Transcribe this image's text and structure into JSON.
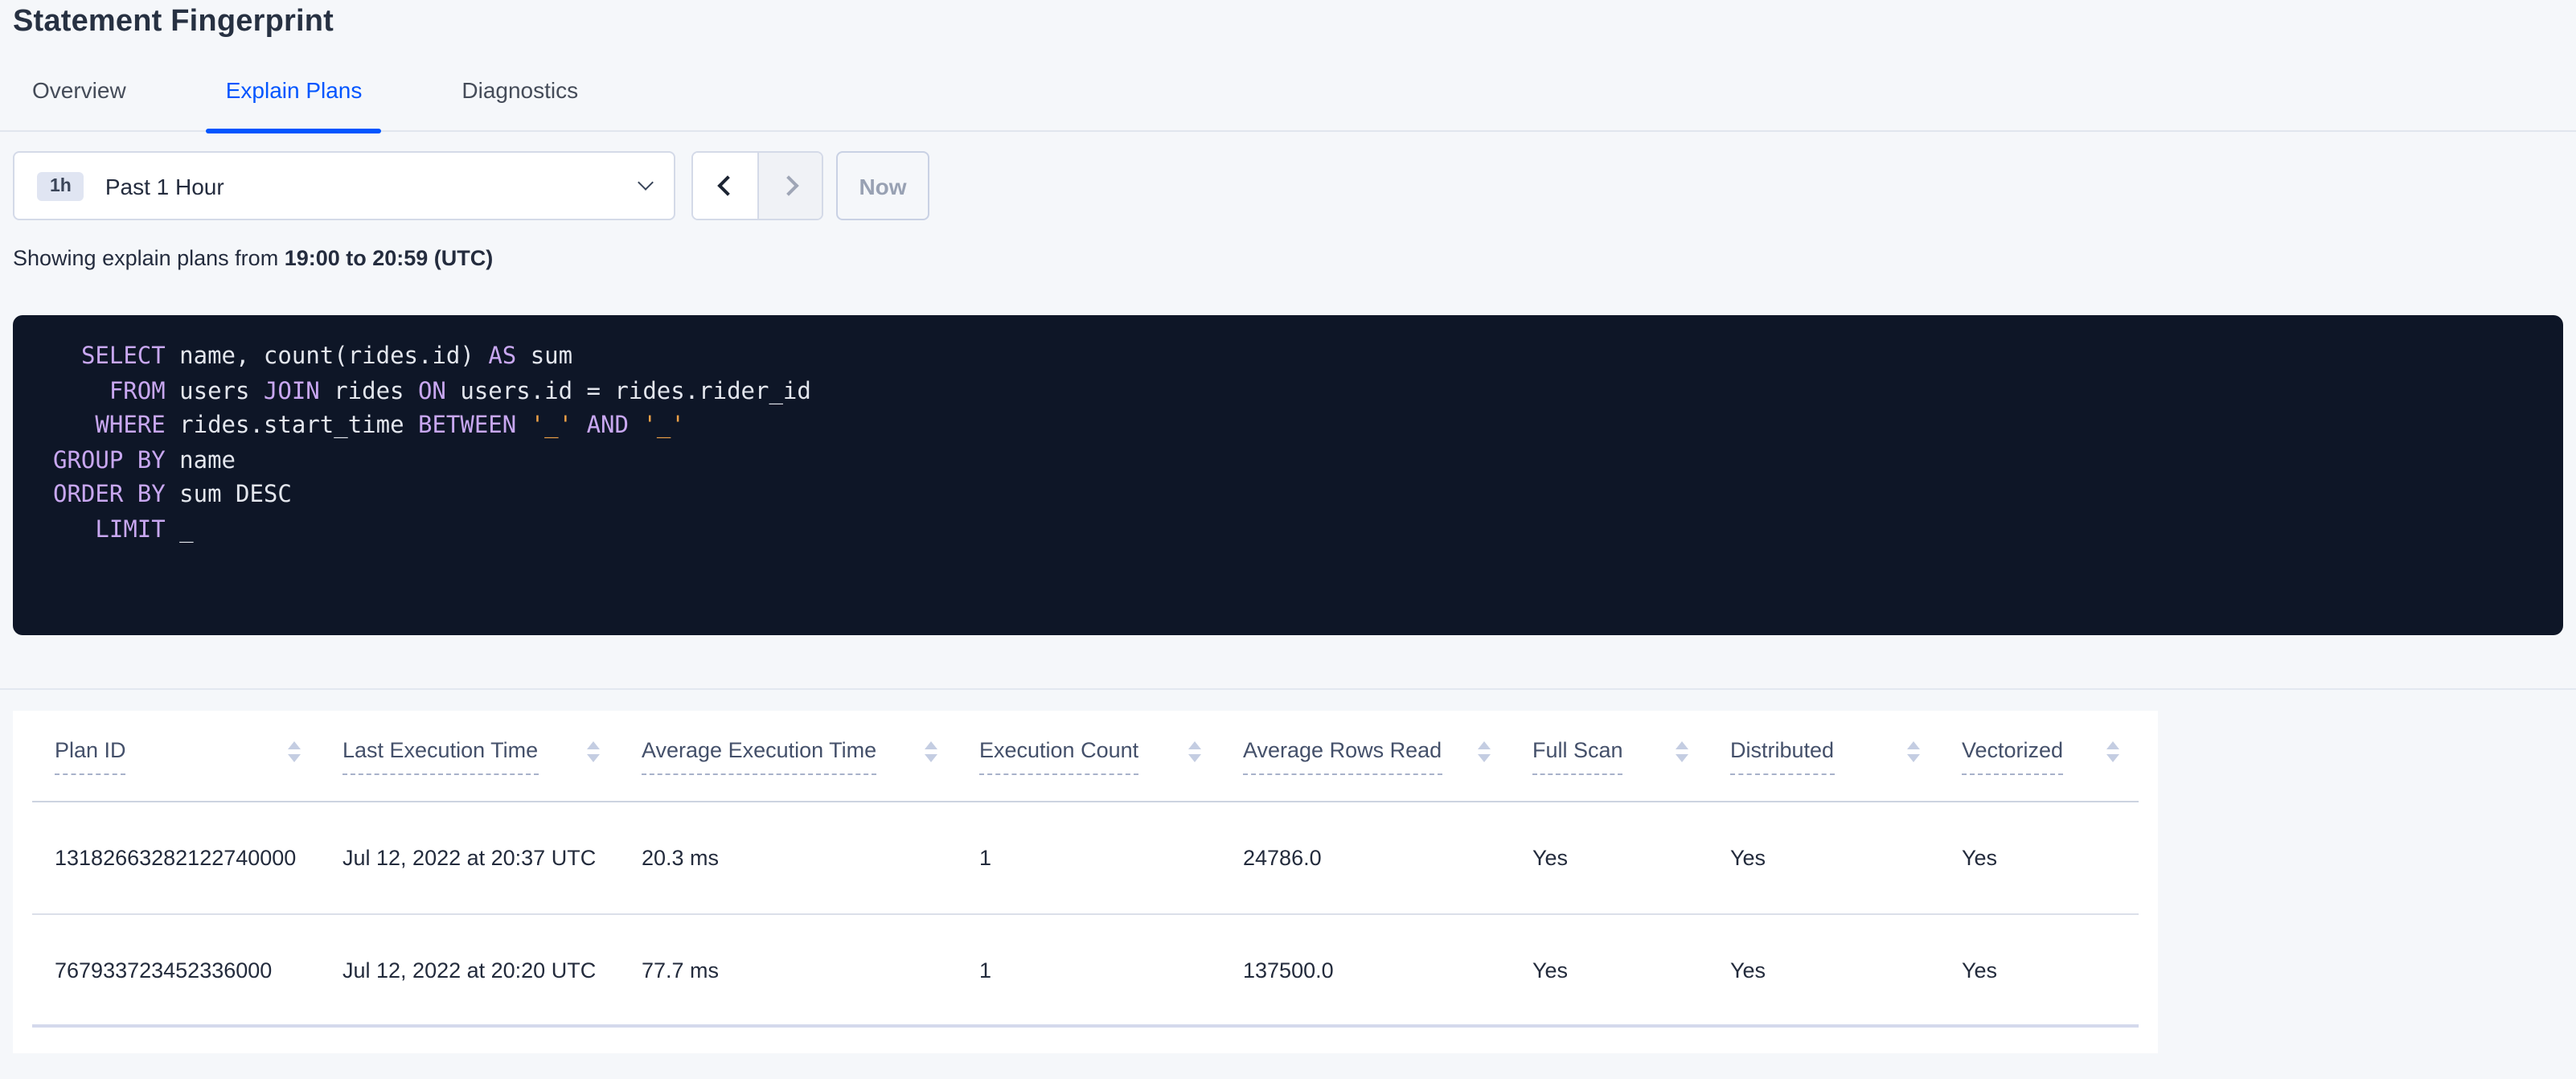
{
  "header": {
    "title": "Statement Fingerprint"
  },
  "tabs": {
    "items": [
      {
        "label": "Overview",
        "active": false
      },
      {
        "label": "Explain Plans",
        "active": true
      },
      {
        "label": "Diagnostics",
        "active": false
      }
    ]
  },
  "toolbar": {
    "time_badge": "1h",
    "time_range_label": "Past 1 Hour",
    "prev_icon": "chevron-left",
    "next_icon": "chevron-right",
    "now_label": "Now"
  },
  "caption": {
    "prefix": "Showing explain plans from ",
    "bold_range": "19:00 to 20:59 (UTC)"
  },
  "sql_box": {
    "lines": [
      [
        {
          "t": "  ",
          "c": "id"
        },
        {
          "t": "SELECT",
          "c": "kw"
        },
        {
          "t": " name, count(rides.id) ",
          "c": "id"
        },
        {
          "t": "AS",
          "c": "kw"
        },
        {
          "t": " sum",
          "c": "id"
        }
      ],
      [
        {
          "t": "    ",
          "c": "id"
        },
        {
          "t": "FROM",
          "c": "kw"
        },
        {
          "t": " users ",
          "c": "id"
        },
        {
          "t": "JOIN",
          "c": "kw"
        },
        {
          "t": " rides ",
          "c": "id"
        },
        {
          "t": "ON",
          "c": "kw"
        },
        {
          "t": " users.id = rides.rider_id",
          "c": "id"
        }
      ],
      [
        {
          "t": "   ",
          "c": "id"
        },
        {
          "t": "WHERE",
          "c": "kw"
        },
        {
          "t": " rides.start_time ",
          "c": "id"
        },
        {
          "t": "BETWEEN",
          "c": "kw"
        },
        {
          "t": " ",
          "c": "id"
        },
        {
          "t": "'_'",
          "c": "lit"
        },
        {
          "t": " ",
          "c": "id"
        },
        {
          "t": "AND",
          "c": "kw"
        },
        {
          "t": " ",
          "c": "id"
        },
        {
          "t": "'_'",
          "c": "lit"
        }
      ],
      [
        {
          "t": "GROUP BY",
          "c": "kw"
        },
        {
          "t": " name",
          "c": "id"
        }
      ],
      [
        {
          "t": "ORDER BY",
          "c": "kw"
        },
        {
          "t": " sum DESC",
          "c": "id"
        }
      ],
      [
        {
          "t": "   ",
          "c": "id"
        },
        {
          "t": "LIMIT",
          "c": "kw"
        },
        {
          "t": " _",
          "c": "id"
        }
      ]
    ]
  },
  "plans_table": {
    "columns": [
      "Plan ID",
      "Last Execution Time",
      "Average Execution Time",
      "Execution Count",
      "Average Rows Read",
      "Full Scan",
      "Distributed",
      "Vectorized"
    ],
    "rows": [
      [
        "13182663282122740000",
        "Jul 12, 2022 at 20:37 UTC",
        "20.3 ms",
        "1",
        "24786.0",
        "Yes",
        "Yes",
        "Yes"
      ],
      [
        "767933723452336000",
        "Jul 12, 2022 at 20:20 UTC",
        "77.7 ms",
        "1",
        "137500.0",
        "Yes",
        "Yes",
        "Yes"
      ]
    ]
  },
  "colors": {
    "accent_blue": "#0055ff",
    "sql_background": "#0e1627",
    "sql_keyword": "#c8a7f0",
    "sql_literal": "#efa147",
    "sql_text": "#e3e6ed"
  }
}
